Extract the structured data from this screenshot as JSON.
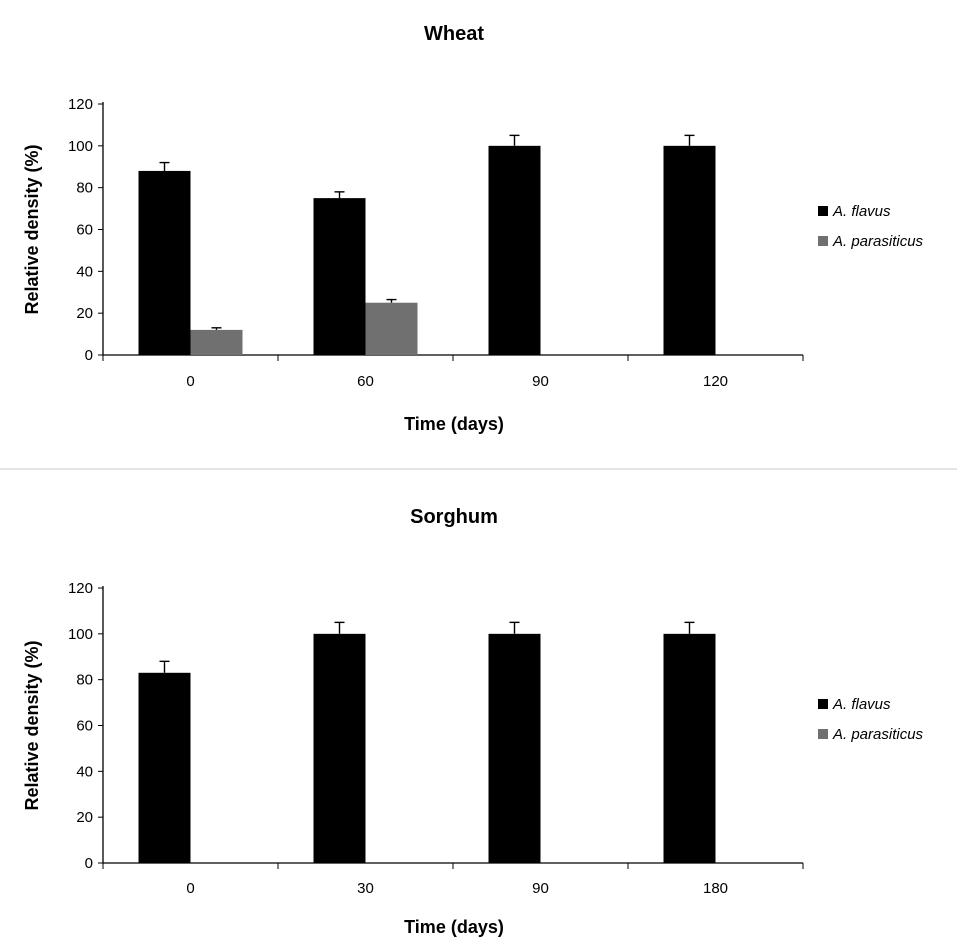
{
  "chart_data": [
    {
      "type": "bar",
      "title": "Wheat",
      "xlabel": "Time (days)",
      "ylabel": "Relative density (%)",
      "categories": [
        "0",
        "60",
        "90",
        "120"
      ],
      "series": [
        {
          "name": "A. flavus",
          "color": "#000000",
          "values": [
            88,
            75,
            100,
            100
          ],
          "errors": [
            4,
            3,
            5,
            5
          ]
        },
        {
          "name": "A. parasiticus",
          "color": "#707070",
          "values": [
            12,
            25,
            0,
            0
          ],
          "errors": [
            1,
            1.5,
            0,
            0
          ]
        }
      ],
      "ylim": [
        0,
        120
      ],
      "yticks": [
        "0",
        "20",
        "40",
        "60",
        "80",
        "100",
        "120"
      ],
      "grid": false,
      "legend_position": "right"
    },
    {
      "type": "bar",
      "title": "Sorghum",
      "xlabel": "Time (days)",
      "ylabel": "Relative density (%)",
      "categories": [
        "0",
        "30",
        "90",
        "180"
      ],
      "series": [
        {
          "name": "A. flavus",
          "color": "#000000",
          "values": [
            83,
            100,
            100,
            100
          ],
          "errors": [
            5,
            5,
            5,
            5
          ]
        },
        {
          "name": "A. parasiticus",
          "color": "#707070",
          "values": [
            0,
            0,
            0,
            0
          ],
          "errors": [
            0,
            0,
            0,
            0
          ]
        }
      ],
      "ylim": [
        0,
        120
      ],
      "yticks": [
        "0",
        "20",
        "40",
        "60",
        "80",
        "100",
        "120"
      ],
      "grid": false,
      "legend_position": "right"
    }
  ]
}
